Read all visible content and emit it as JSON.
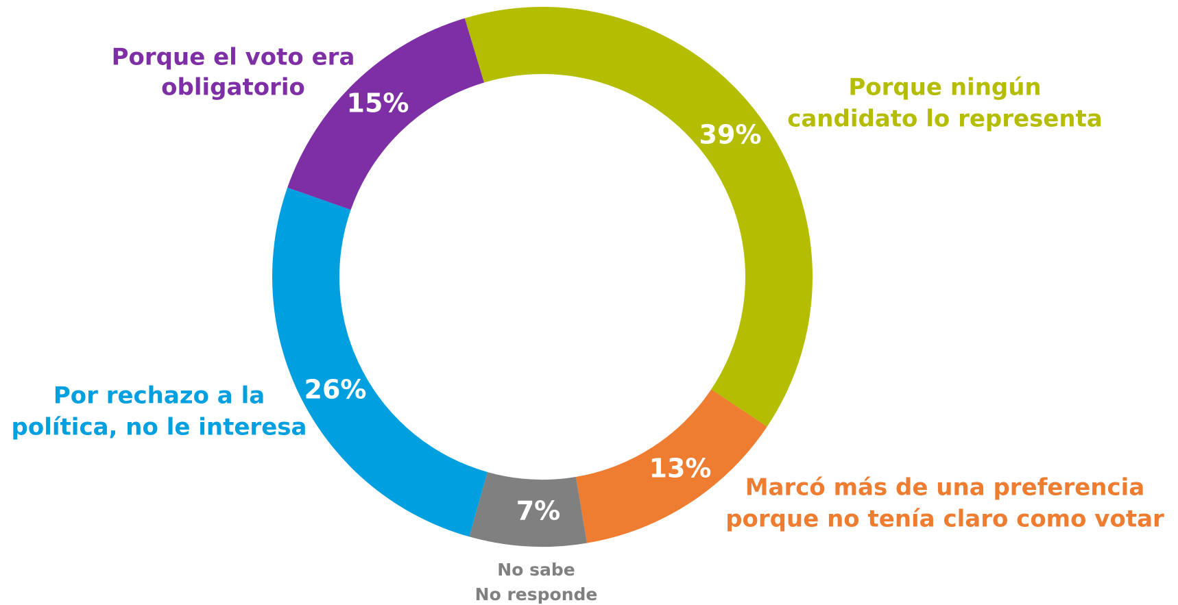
{
  "chart_data": {
    "type": "donut",
    "categories": [
      [
        "Porque ningún",
        "candidato lo representa"
      ],
      [
        "Marcó más de una preferencia",
        "porque no tenía claro como votar"
      ],
      [
        "No sabe",
        "No responde"
      ],
      [
        "Por rechazo a la",
        "política, no le interesa"
      ],
      [
        "Porque el voto era",
        "obligatorio"
      ]
    ],
    "values": [
      39,
      13,
      7,
      26,
      15
    ],
    "value_labels": [
      "39%",
      "13%",
      "7%",
      "26%",
      "15%"
    ],
    "colors": [
      "#b5bd00",
      "#ee7d31",
      "#808080",
      "#009fe0",
      "#7f2fa5"
    ]
  }
}
